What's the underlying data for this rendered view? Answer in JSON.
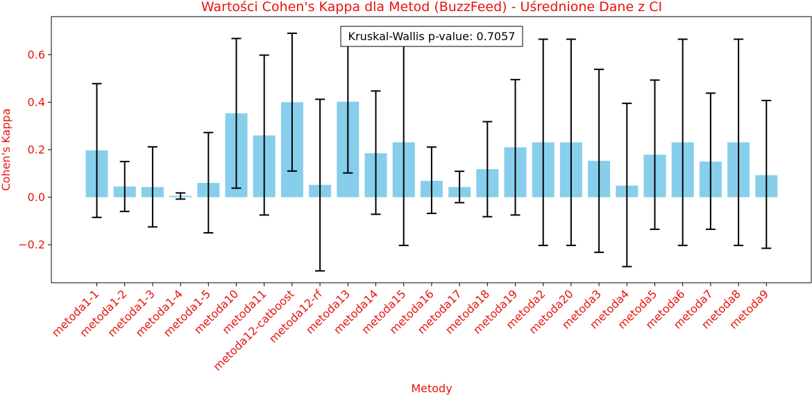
{
  "chart_data": {
    "type": "bar",
    "title": "Wartości Cohen's Kappa dla Metod (BuzzFeed) - Uśrednione Dane z CI",
    "xlabel": "Metody",
    "ylabel": "Cohen's Kappa",
    "ylim": [
      -0.36,
      0.76
    ],
    "yticks": [
      -0.2,
      0.0,
      0.2,
      0.4,
      0.6
    ],
    "ytick_labels": [
      "−0.2",
      "0.0",
      "0.2",
      "0.4",
      "0.6"
    ],
    "grid": false,
    "annotation": "Kruskal-Wallis p-value: 0.7057",
    "categories": [
      "metoda1-1",
      "metoda1-2",
      "metoda1-3",
      "metoda1-4",
      "metoda1-5",
      "metoda10",
      "metoda11",
      "metoda12-catboost",
      "metoda12-rf",
      "metoda13",
      "metoda14",
      "metoda15",
      "metoda16",
      "metoda17",
      "metoda18",
      "metoda19",
      "metoda2",
      "metoda20",
      "metoda3",
      "metoda4",
      "metoda5",
      "metoda6",
      "metoda7",
      "metoda8",
      "metoda9"
    ],
    "values": [
      0.197,
      0.045,
      0.043,
      0.006,
      0.06,
      0.353,
      0.26,
      0.4,
      0.052,
      0.402,
      0.185,
      0.231,
      0.069,
      0.043,
      0.118,
      0.21,
      0.231,
      0.231,
      0.153,
      0.049,
      0.179,
      0.231,
      0.15,
      0.231,
      0.093
    ],
    "ci_lower": [
      -0.085,
      -0.06,
      -0.125,
      -0.008,
      -0.15,
      0.038,
      -0.075,
      0.11,
      -0.31,
      0.102,
      -0.072,
      -0.203,
      -0.068,
      -0.023,
      -0.082,
      -0.075,
      -0.203,
      -0.203,
      -0.232,
      -0.292,
      -0.135,
      -0.203,
      -0.135,
      -0.203,
      -0.215
    ],
    "ci_upper": [
      0.478,
      0.15,
      0.212,
      0.018,
      0.272,
      0.668,
      0.598,
      0.69,
      0.412,
      0.7,
      0.447,
      0.665,
      0.211,
      0.109,
      0.318,
      0.495,
      0.665,
      0.665,
      0.538,
      0.395,
      0.493,
      0.665,
      0.438,
      0.665,
      0.407
    ],
    "colors": {
      "bar": "#87ceeb",
      "text": "#e8120c",
      "error": "#000000"
    }
  }
}
